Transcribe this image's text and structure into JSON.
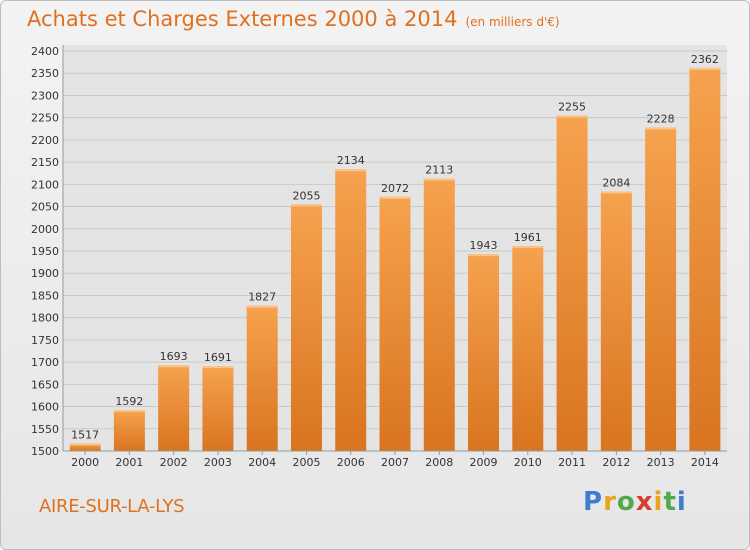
{
  "header": {
    "title": "Achats et Charges Externes 2000 à 2014",
    "subtitle": "(en milliers d'€)"
  },
  "footer": {
    "city": "AIRE-SUR-LA-LYS",
    "brand": "Proxiti"
  },
  "colors": {
    "accent": "#e0701f",
    "bar_top": "#f6a24e",
    "bar_bottom": "#d9741f"
  },
  "chart_data": {
    "type": "bar",
    "title": "Achats et Charges Externes 2000 à 2014",
    "subtitle": "(en milliers d'€)",
    "categories": [
      "2000",
      "2001",
      "2002",
      "2003",
      "2004",
      "2005",
      "2006",
      "2007",
      "2008",
      "2009",
      "2010",
      "2011",
      "2012",
      "2013",
      "2014"
    ],
    "values": [
      1517,
      1592,
      1693,
      1691,
      1827,
      2055,
      2134,
      2072,
      2113,
      1943,
      1961,
      2255,
      2084,
      2228,
      2362
    ],
    "ylim": [
      1500,
      2400
    ],
    "yticks": [
      1500,
      1550,
      1600,
      1650,
      1700,
      1750,
      1800,
      1850,
      1900,
      1950,
      2000,
      2050,
      2100,
      2150,
      2200,
      2250,
      2300,
      2350,
      2400
    ],
    "grid": true,
    "data_labels": true
  }
}
